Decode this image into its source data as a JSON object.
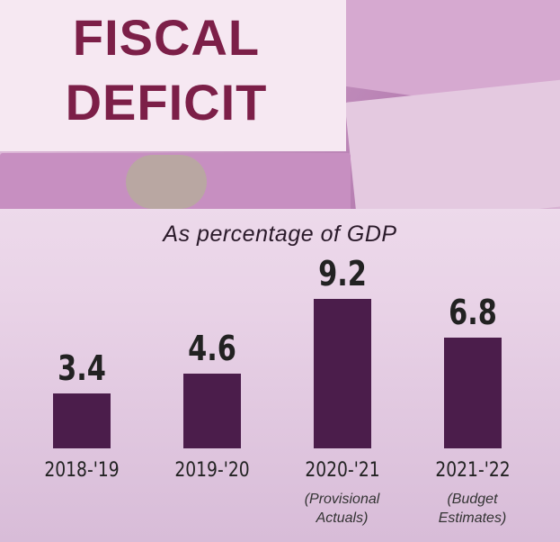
{
  "chart_data": {
    "type": "bar",
    "title": "FISCAL DEFICIT",
    "subtitle": "As percentage of GDP",
    "categories": [
      "2018-'19",
      "2019-'20",
      "2020-'21",
      "2021-'22"
    ],
    "category_notes": [
      null,
      null,
      "(Provisional Actuals)",
      "(Budget Estimates)"
    ],
    "values": [
      3.4,
      4.6,
      9.2,
      6.8
    ],
    "color": "#4b1d4b"
  }
}
